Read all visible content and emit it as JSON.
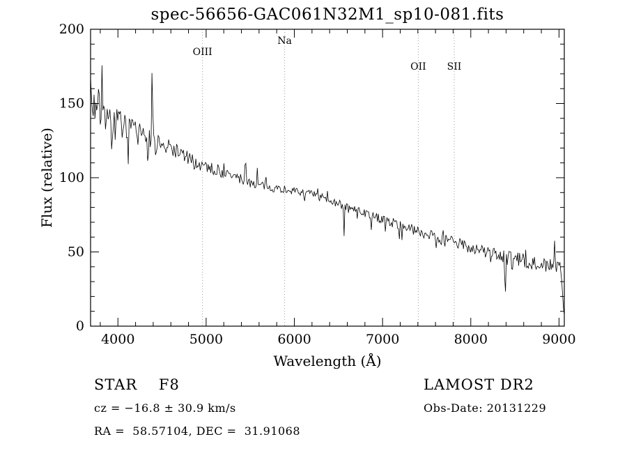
{
  "chart_data": {
    "type": "line",
    "title": "spec-56656-GAC061N32M1_sp10-081.fits",
    "xlabel": "Wavelength (Å)",
    "ylabel": "Flux (relative)",
    "xlim": [
      3690,
      9060
    ],
    "ylim": [
      0,
      200
    ],
    "x_major_ticks": [
      4000,
      5000,
      6000,
      7000,
      8000,
      9000
    ],
    "x_minor_step": 200,
    "y_major_ticks": [
      0,
      50,
      100,
      150,
      200
    ],
    "y_minor_step": 10,
    "line_color": "#000000",
    "gridline_color": "#999999",
    "grid": "spectral-lines-only",
    "legend": "none",
    "seed": 7,
    "spectral_lines": [
      {
        "label": "OIII",
        "wavelength": 4959,
        "label_y": 79
      },
      {
        "label": "Na",
        "wavelength": 5890,
        "label_y": 63
      },
      {
        "label": "OII",
        "wavelength": 7405,
        "label_y": 100
      },
      {
        "label": "SII",
        "wavelength": 7812,
        "label_y": 100
      }
    ],
    "continuum": [
      [
        3690,
        148
      ],
      [
        3750,
        150
      ],
      [
        3800,
        145
      ],
      [
        3900,
        142
      ],
      [
        4000,
        138
      ],
      [
        4100,
        133
      ],
      [
        4200,
        130
      ],
      [
        4300,
        128
      ],
      [
        4400,
        126
      ],
      [
        4500,
        123
      ],
      [
        4600,
        120
      ],
      [
        4700,
        117
      ],
      [
        4800,
        113
      ],
      [
        4900,
        110
      ],
      [
        5000,
        108
      ],
      [
        5100,
        105
      ],
      [
        5200,
        103
      ],
      [
        5300,
        101
      ],
      [
        5400,
        99
      ],
      [
        5500,
        97
      ],
      [
        5600,
        95
      ],
      [
        5700,
        94
      ],
      [
        5800,
        93
      ],
      [
        5900,
        92
      ],
      [
        6000,
        91
      ],
      [
        6100,
        90
      ],
      [
        6200,
        89
      ],
      [
        6300,
        87
      ],
      [
        6400,
        85
      ],
      [
        6500,
        83
      ],
      [
        6600,
        80
      ],
      [
        6700,
        78
      ],
      [
        6800,
        76
      ],
      [
        6900,
        74
      ],
      [
        7000,
        72
      ],
      [
        7100,
        70
      ],
      [
        7200,
        68
      ],
      [
        7300,
        66
      ],
      [
        7400,
        64
      ],
      [
        7500,
        62
      ],
      [
        7600,
        60
      ],
      [
        7700,
        58
      ],
      [
        7800,
        57
      ],
      [
        7900,
        55
      ],
      [
        8000,
        53
      ],
      [
        8100,
        51
      ],
      [
        8200,
        50
      ],
      [
        8300,
        48
      ],
      [
        8400,
        46
      ],
      [
        8500,
        45
      ],
      [
        8600,
        44
      ],
      [
        8700,
        43
      ],
      [
        8800,
        42
      ],
      [
        8900,
        41
      ],
      [
        9000,
        40
      ],
      [
        9030,
        35
      ],
      [
        9055,
        6
      ]
    ],
    "noise_profile": [
      [
        3690,
        15
      ],
      [
        4000,
        9
      ],
      [
        4500,
        6
      ],
      [
        5000,
        4
      ],
      [
        5500,
        3.5
      ],
      [
        6000,
        2.5
      ],
      [
        6500,
        2.5
      ],
      [
        7000,
        3
      ],
      [
        7500,
        3.5
      ],
      [
        8000,
        4
      ],
      [
        8500,
        5
      ],
      [
        9000,
        5
      ]
    ],
    "features": [
      {
        "wavelength": 3935,
        "delta": -30,
        "width": 12
      },
      {
        "wavelength": 3970,
        "delta": -25,
        "width": 12
      },
      {
        "wavelength": 4102,
        "delta": -15,
        "width": 10
      },
      {
        "wavelength": 4227,
        "delta": -12,
        "width": 8
      },
      {
        "wavelength": 4340,
        "delta": -14,
        "width": 10
      },
      {
        "wavelength": 4390,
        "delta": 80,
        "width": 8
      },
      {
        "wavelength": 4430,
        "delta": -18,
        "width": 8
      },
      {
        "wavelength": 4550,
        "delta": -14,
        "width": 8
      },
      {
        "wavelength": 4861,
        "delta": -12,
        "width": 10
      },
      {
        "wavelength": 5445,
        "delta": 26,
        "width": 8
      },
      {
        "wavelength": 5580,
        "delta": 10,
        "width": 6
      },
      {
        "wavelength": 6280,
        "delta": -8,
        "width": 8
      },
      {
        "wavelength": 6563,
        "delta": -20,
        "width": 10
      },
      {
        "wavelength": 6870,
        "delta": -9,
        "width": 12
      },
      {
        "wavelength": 7190,
        "delta": -8,
        "width": 10
      },
      {
        "wavelength": 7605,
        "delta": -10,
        "width": 14
      },
      {
        "wavelength": 8230,
        "delta": -12,
        "width": 8
      },
      {
        "wavelength": 8390,
        "delta": -38,
        "width": 10
      },
      {
        "wavelength": 8470,
        "delta": -16,
        "width": 8
      },
      {
        "wavelength": 8950,
        "delta": 14,
        "width": 8
      }
    ]
  },
  "annotations": {
    "class_line": "STAR    F8",
    "survey": "LAMOST DR2",
    "cz_line": "cz = −16.8 ± 30.9 km/s",
    "obs_date_line": "Obs-Date: 20131229",
    "radec_line": "RA =  58.57104, DEC =  31.91068"
  }
}
